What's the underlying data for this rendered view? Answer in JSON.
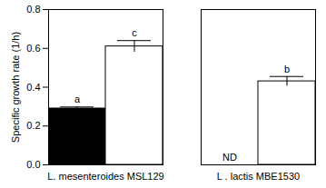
{
  "chart_data": {
    "type": "bar",
    "y_label": "Specific growth rate (1/h)",
    "categories": [
      "L. mesenteroides MSL129",
      "L . lactis MBE1530"
    ],
    "series": [
      {
        "color": "#000000",
        "values": [
          0.29,
          null
        ],
        "errors": [
          0.008,
          null
        ],
        "annotations": [
          "a",
          "ND"
        ]
      },
      {
        "color": "#ffffff",
        "values": [
          0.61,
          0.43
        ],
        "errors": [
          0.03,
          0.025
        ],
        "annotations": [
          "c",
          "b"
        ]
      }
    ],
    "ylim": [
      0,
      0.8
    ],
    "yticks": [
      {
        "value": 0,
        "label": "0.0"
      },
      {
        "value": 0.2,
        "label": "0.2"
      },
      {
        "value": 0.4,
        "label": "0.4"
      },
      {
        "value": 0.6,
        "label": "0.6"
      },
      {
        "value": 0.8,
        "label": "0.8"
      }
    ],
    "grid": false
  }
}
